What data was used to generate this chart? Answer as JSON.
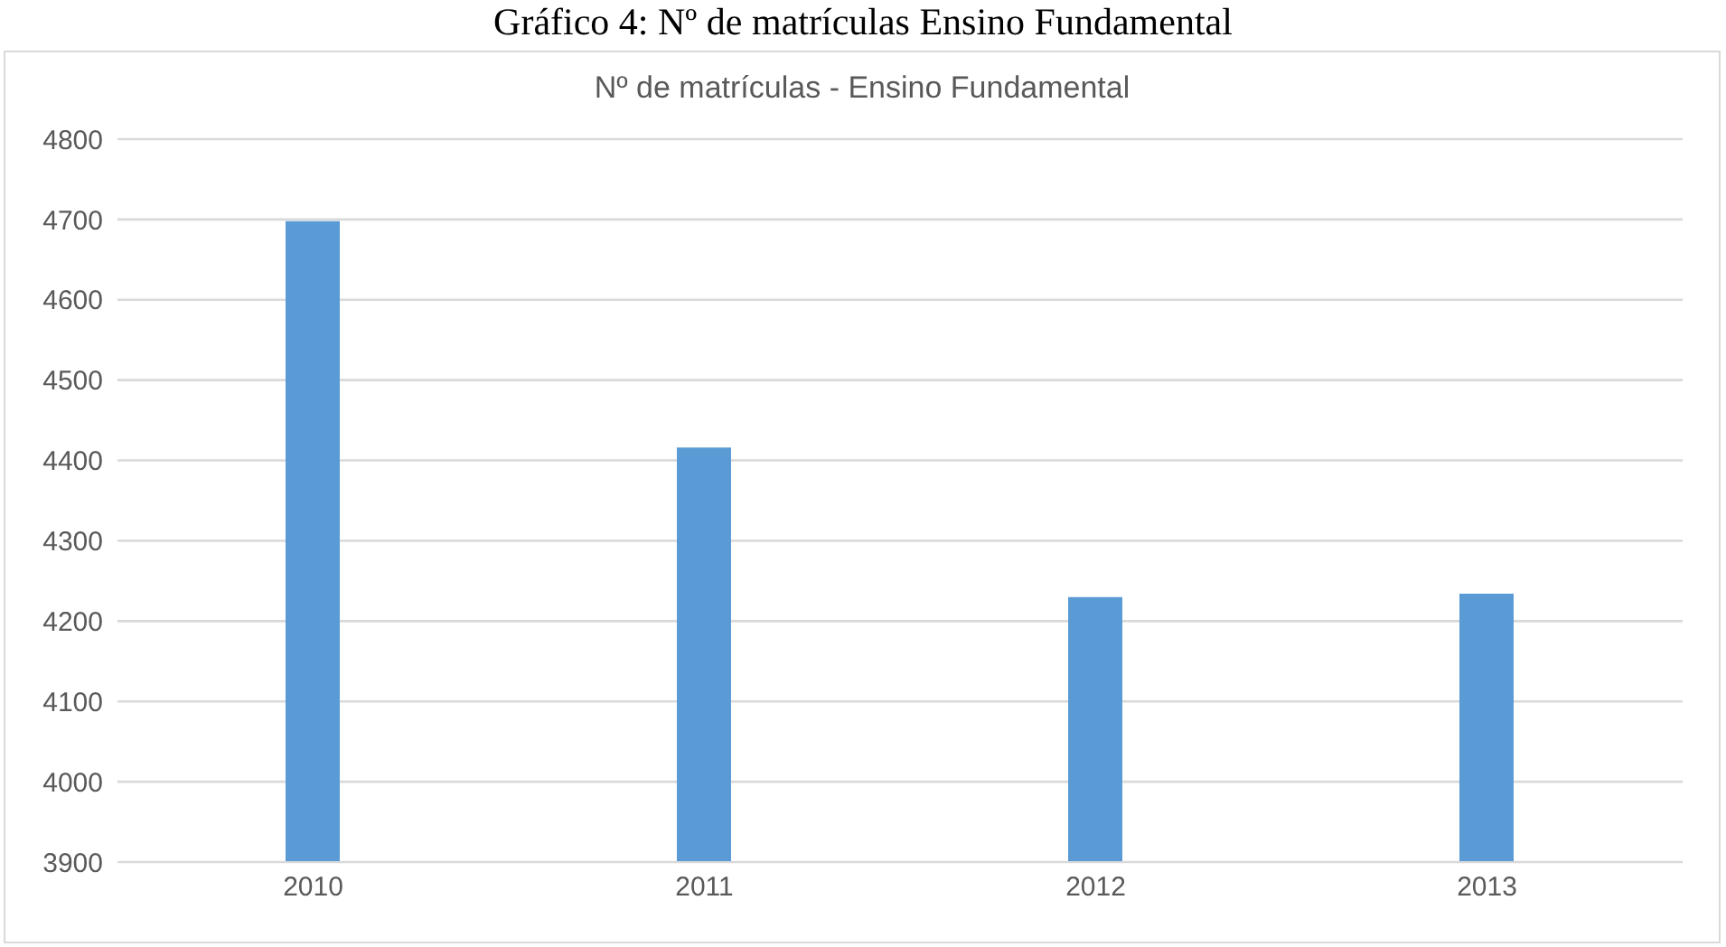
{
  "chart_data": {
    "type": "bar",
    "title": "Gráfico 4: Nº de matrículas  Ensino Fundamental",
    "subtitle": "Nº de matrículas - Ensino Fundamental",
    "categories": [
      "2010",
      "2011",
      "2012",
      "2013"
    ],
    "values": [
      4698,
      4416,
      4230,
      4234
    ],
    "color": "#5b9bd5",
    "ylim": [
      3900,
      4800
    ],
    "yticks": [
      3900,
      4000,
      4100,
      4200,
      4300,
      4400,
      4500,
      4600,
      4700,
      4800
    ],
    "grid": "y",
    "legend": false
  }
}
